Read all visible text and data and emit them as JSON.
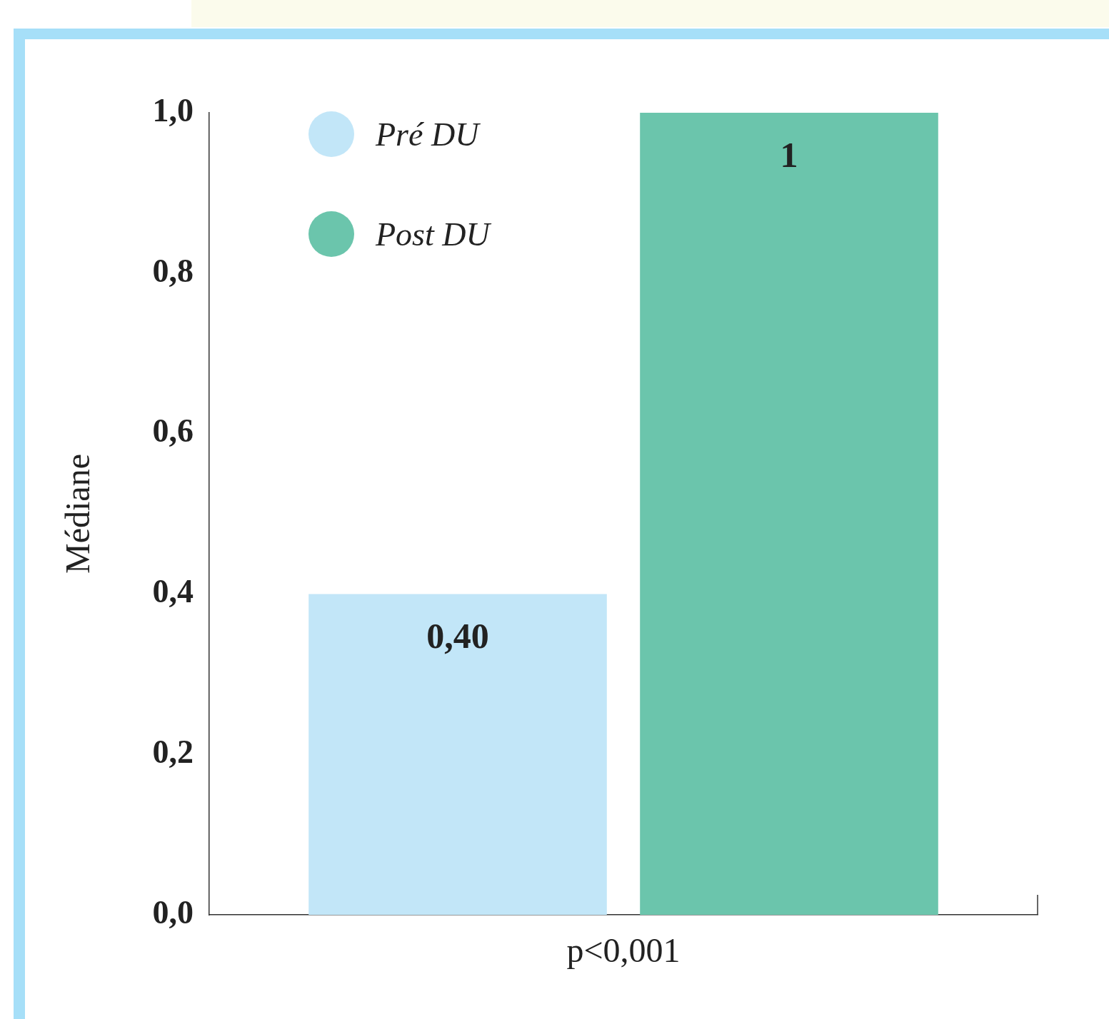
{
  "chart_data": {
    "type": "bar",
    "categories": [
      null
    ],
    "series": [
      {
        "name": "Pré DU",
        "color": "#c2e6f8",
        "values": [
          0.4
        ],
        "value_labels": [
          "0,40"
        ]
      },
      {
        "name": "Post DU",
        "color": "#6bc5ac",
        "values": [
          1
        ],
        "value_labels": [
          "1"
        ]
      }
    ],
    "ylabel": "Médiane",
    "xlabel": "p<0,001",
    "ylim": [
      0,
      1
    ],
    "yticks": [
      {
        "value": 0,
        "label": "0,0"
      },
      {
        "value": 0.2,
        "label": "0,2"
      },
      {
        "value": 0.4,
        "label": "0,4"
      },
      {
        "value": 0.6,
        "label": "0,6"
      },
      {
        "value": 0.8,
        "label": "0,8"
      },
      {
        "value": 1,
        "label": "1,0"
      }
    ],
    "tick_labels": "y",
    "grid": false,
    "legend": "top left"
  }
}
